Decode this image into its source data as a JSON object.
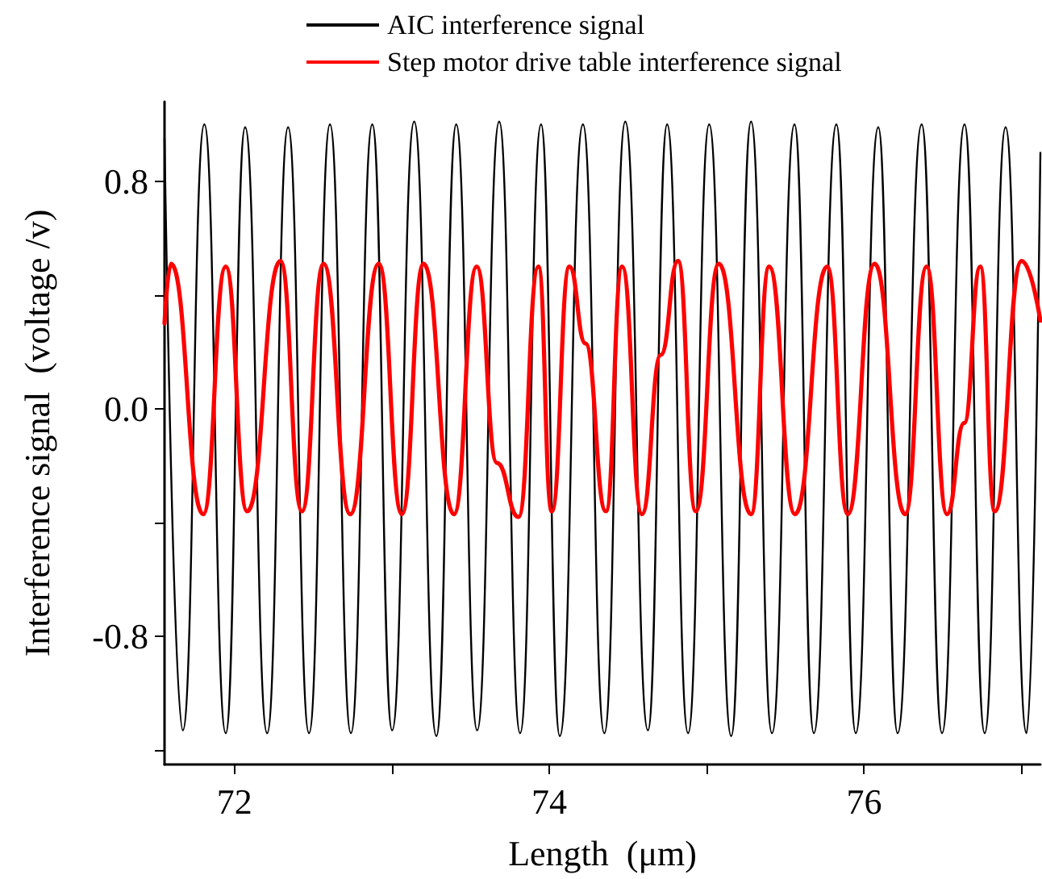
{
  "chart_data": {
    "type": "line",
    "xlabel": "Length  (μm)",
    "ylabel": "Interference signal  (voltage /v)",
    "xlim": [
      71.556,
      77.12
    ],
    "ylim": [
      -1.25,
      1.08
    ],
    "xticks": [
      72,
      {
        "value": 73,
        "label": null
      },
      74,
      {
        "value": 75,
        "label": null
      },
      76,
      {
        "value": 77,
        "label": null
      }
    ],
    "yticks": [
      {
        "value": -1.2,
        "label": null
      },
      -0.8,
      {
        "value": -0.4,
        "label": null
      },
      {
        "value": 0,
        "label": "0.0"
      },
      {
        "value": 0.4,
        "label": null
      },
      0.8
    ],
    "grid": false,
    "legend": "top",
    "marker": "none",
    "line_style": "solid",
    "series": [
      {
        "name": "AIC interference signal",
        "color": "#000000",
        "x": [
          71.556,
          71.672,
          71.809,
          71.945,
          72.068,
          72.208,
          72.341,
          72.474,
          72.607,
          72.74,
          72.876,
          73.002,
          73.142,
          73.283,
          73.409,
          73.542,
          73.682,
          73.815,
          73.948,
          74.067,
          74.214,
          74.35,
          74.483,
          74.627,
          74.749,
          74.882,
          75.016,
          75.156,
          75.282,
          75.415,
          75.558,
          75.681,
          75.824,
          75.947,
          76.09,
          76.213,
          76.366,
          76.495,
          76.638,
          76.766,
          76.899,
          77.032,
          77.12
        ],
        "values": [
          0.95,
          -1.13,
          1.0,
          -1.14,
          0.99,
          -1.14,
          0.99,
          -1.14,
          1.0,
          -1.14,
          1.0,
          -1.13,
          1.01,
          -1.15,
          1.0,
          -1.13,
          1.01,
          -1.14,
          1.0,
          -1.15,
          1.0,
          -1.14,
          1.01,
          -1.13,
          1.0,
          -1.14,
          1.0,
          -1.15,
          1.01,
          -1.14,
          1.0,
          -1.14,
          1.0,
          -1.14,
          0.99,
          -1.14,
          1.0,
          -1.14,
          1.0,
          -1.14,
          0.99,
          -1.14,
          0.9
        ]
      },
      {
        "name": "Step motor drive table interference signal",
        "color": "#ff0000",
        "x": [
          71.556,
          71.597,
          71.802,
          71.945,
          72.081,
          72.293,
          72.429,
          72.566,
          72.736,
          72.917,
          73.064,
          73.201,
          73.395,
          73.539,
          73.668,
          73.805,
          73.931,
          74.016,
          74.128,
          74.23,
          74.36,
          74.463,
          74.589,
          74.709,
          74.818,
          74.931,
          75.077,
          75.282,
          75.397,
          75.561,
          75.766,
          75.896,
          76.067,
          76.261,
          76.397,
          76.527,
          76.636,
          76.738,
          76.83,
          77.001,
          77.12
        ],
        "values": [
          0.3,
          0.51,
          -0.37,
          0.5,
          -0.36,
          0.52,
          -0.36,
          0.51,
          -0.37,
          0.51,
          -0.37,
          0.51,
          -0.37,
          0.5,
          -0.19,
          -0.38,
          0.5,
          -0.36,
          0.5,
          0.23,
          -0.36,
          0.5,
          -0.37,
          0.19,
          0.52,
          -0.36,
          0.51,
          -0.37,
          0.5,
          -0.37,
          0.5,
          -0.37,
          0.51,
          -0.37,
          0.5,
          -0.37,
          -0.05,
          0.5,
          -0.36,
          0.52,
          0.31
        ]
      }
    ]
  }
}
